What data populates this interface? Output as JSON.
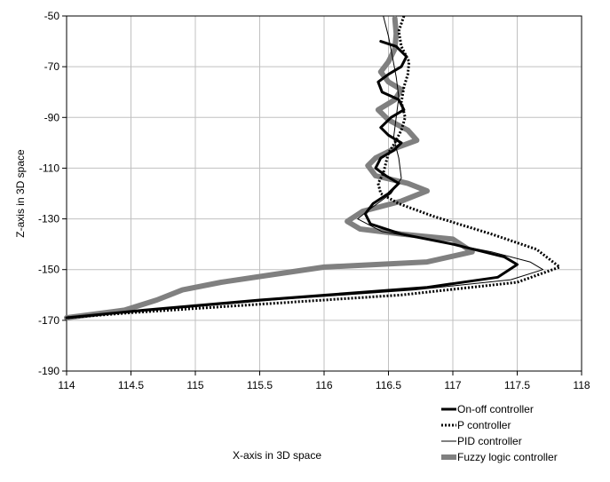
{
  "chart_data": {
    "type": "line",
    "title": "",
    "xlabel": "X-axis in 3D space",
    "ylabel": "Z-axis in 3D space",
    "xlim": [
      114,
      118
    ],
    "ylim": [
      -190,
      -50
    ],
    "xticks": [
      "114",
      "114.5",
      "115",
      "115.5",
      "116",
      "116.5",
      "117",
      "117.5",
      "118"
    ],
    "yticks": [
      "-50",
      "-70",
      "-90",
      "-110",
      "-130",
      "-150",
      "-170",
      "-190"
    ],
    "grid": true,
    "legend_position": "bottom-right",
    "series": [
      {
        "name": "On-off controller",
        "color": "#000000",
        "style": "thick-solid",
        "points": [
          [
            116.44,
            -60
          ],
          [
            116.56,
            -62
          ],
          [
            116.64,
            -66
          ],
          [
            116.6,
            -70
          ],
          [
            116.5,
            -73
          ],
          [
            116.42,
            -76
          ],
          [
            116.45,
            -80
          ],
          [
            116.58,
            -83
          ],
          [
            116.62,
            -87
          ],
          [
            116.52,
            -90
          ],
          [
            116.44,
            -94
          ],
          [
            116.5,
            -97
          ],
          [
            116.6,
            -100
          ],
          [
            116.54,
            -103
          ],
          [
            116.44,
            -106
          ],
          [
            116.4,
            -110
          ],
          [
            116.48,
            -113
          ],
          [
            116.58,
            -116
          ],
          [
            116.5,
            -120
          ],
          [
            116.38,
            -124
          ],
          [
            116.32,
            -128
          ],
          [
            116.36,
            -132
          ],
          [
            116.6,
            -136
          ],
          [
            117.0,
            -140
          ],
          [
            117.4,
            -145
          ],
          [
            117.5,
            -148
          ],
          [
            117.35,
            -153
          ],
          [
            116.8,
            -157
          ],
          [
            115.5,
            -162
          ],
          [
            114.6,
            -166
          ],
          [
            114.0,
            -169
          ]
        ]
      },
      {
        "name": "P controller",
        "color": "#000000",
        "style": "dotted",
        "points": [
          [
            116.62,
            -50
          ],
          [
            116.58,
            -56
          ],
          [
            116.6,
            -62
          ],
          [
            116.66,
            -68
          ],
          [
            116.65,
            -73
          ],
          [
            116.62,
            -78
          ],
          [
            116.6,
            -84
          ],
          [
            116.63,
            -90
          ],
          [
            116.6,
            -95
          ],
          [
            116.55,
            -100
          ],
          [
            116.5,
            -104
          ],
          [
            116.48,
            -108
          ],
          [
            116.46,
            -112
          ],
          [
            116.42,
            -116
          ],
          [
            116.44,
            -120
          ],
          [
            116.58,
            -124
          ],
          [
            116.85,
            -129
          ],
          [
            117.3,
            -136
          ],
          [
            117.65,
            -142
          ],
          [
            117.83,
            -149
          ],
          [
            117.5,
            -155
          ],
          [
            116.6,
            -160
          ],
          [
            115.4,
            -164
          ],
          [
            114.5,
            -167
          ],
          [
            114.0,
            -169
          ]
        ]
      },
      {
        "name": "PID controller",
        "color": "#000000",
        "style": "thin-solid",
        "points": [
          [
            116.46,
            -50
          ],
          [
            116.5,
            -58
          ],
          [
            116.53,
            -66
          ],
          [
            116.56,
            -74
          ],
          [
            116.58,
            -82
          ],
          [
            116.56,
            -90
          ],
          [
            116.54,
            -98
          ],
          [
            116.58,
            -106
          ],
          [
            116.6,
            -114
          ],
          [
            116.52,
            -120
          ],
          [
            116.36,
            -126
          ],
          [
            116.26,
            -130
          ],
          [
            116.45,
            -135
          ],
          [
            116.9,
            -139
          ],
          [
            117.3,
            -143
          ],
          [
            117.6,
            -147
          ],
          [
            117.7,
            -150
          ],
          [
            117.45,
            -154
          ],
          [
            116.7,
            -158
          ],
          [
            115.6,
            -162
          ],
          [
            114.7,
            -166
          ],
          [
            114.0,
            -169
          ]
        ]
      },
      {
        "name": "Fuzzy logic controller",
        "color": "#808080",
        "style": "thick-gray",
        "points": [
          [
            116.55,
            -51
          ],
          [
            116.56,
            -57
          ],
          [
            116.55,
            -63
          ],
          [
            116.5,
            -68
          ],
          [
            116.44,
            -72
          ],
          [
            116.5,
            -76
          ],
          [
            116.6,
            -79
          ],
          [
            116.55,
            -83
          ],
          [
            116.42,
            -87
          ],
          [
            116.5,
            -91
          ],
          [
            116.65,
            -95
          ],
          [
            116.72,
            -99
          ],
          [
            116.56,
            -102
          ],
          [
            116.4,
            -106
          ],
          [
            116.34,
            -109
          ],
          [
            116.4,
            -113
          ],
          [
            116.65,
            -116
          ],
          [
            116.8,
            -119
          ],
          [
            116.6,
            -123
          ],
          [
            116.3,
            -127
          ],
          [
            116.18,
            -131
          ],
          [
            116.28,
            -134
          ],
          [
            116.6,
            -136
          ],
          [
            117.0,
            -138
          ],
          [
            117.15,
            -143
          ],
          [
            116.8,
            -147
          ],
          [
            116.0,
            -149
          ],
          [
            115.6,
            -152
          ],
          [
            115.2,
            -155
          ],
          [
            114.9,
            -158
          ],
          [
            114.7,
            -162
          ],
          [
            114.45,
            -166
          ],
          [
            114.0,
            -169
          ]
        ]
      }
    ]
  }
}
